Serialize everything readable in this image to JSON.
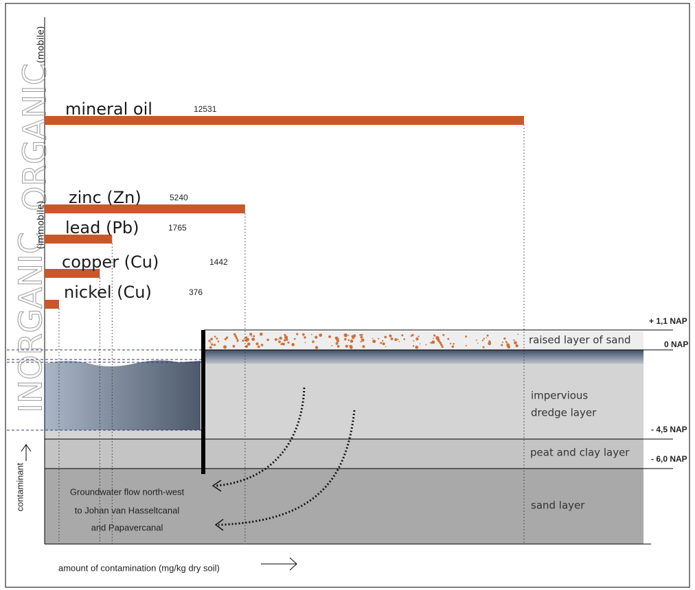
{
  "side_labels": {
    "organic": "ORGANIC",
    "mobile": "(mobile)",
    "inorganic": "INORGANIC",
    "immobile": "(immobile)"
  },
  "bars": [
    {
      "name": "mineral oil",
      "value": 12531
    },
    {
      "name": "zinc (Zn)",
      "value": 5240
    },
    {
      "name": "lead (Pb)",
      "value": 1765
    },
    {
      "name": "copper (Cu)",
      "value": 1442
    },
    {
      "name": "nickel (Cu)",
      "value": 376
    }
  ],
  "levels": [
    "+ 1,1 NAP",
    "0 NAP",
    "- 4,5 NAP",
    "- 6,0 NAP"
  ],
  "layers": {
    "sand_top": "raised layer of sand",
    "impervious": [
      "impervious",
      "dredge layer"
    ],
    "peat": "peat and clay layer",
    "sand": "sand layer"
  },
  "flow": [
    "Groundwater flow north-west",
    "to Johan van Hasseltcanal",
    "and Papavercanal"
  ],
  "y_axis": "contaminant",
  "x_axis": "amount of contamination (mg/kg dry soil)"
}
